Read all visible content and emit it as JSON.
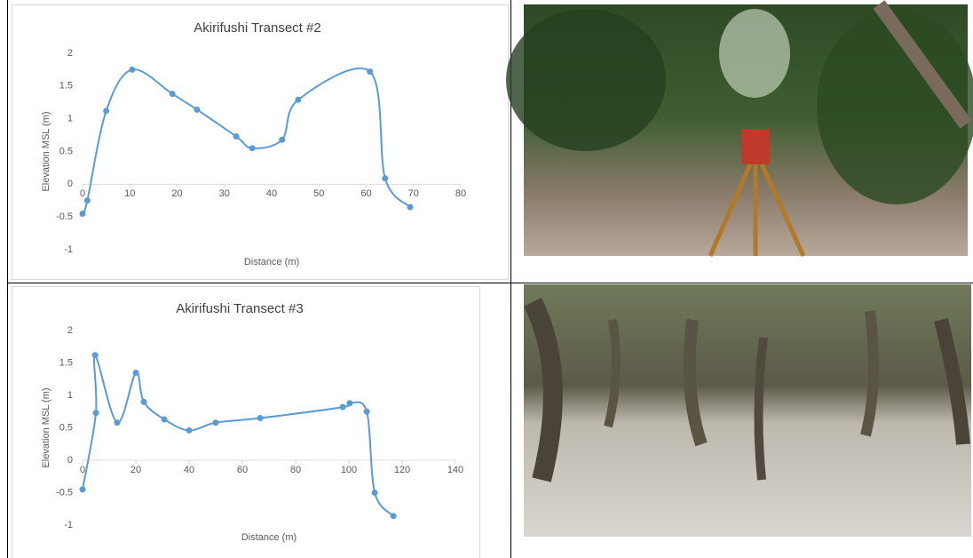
{
  "chart_data": [
    {
      "type": "line",
      "title": "Akirifushi Transect #2",
      "xlabel": "Distance (m)",
      "ylabel": "Elevation MSL (m)",
      "x": [
        0,
        1,
        5,
        10.5,
        19,
        24.2,
        32.5,
        35.9,
        42.2,
        45.6,
        60.8,
        64,
        69.3
      ],
      "values": [
        -0.45,
        -0.25,
        1.12,
        1.75,
        1.38,
        1.14,
        0.73,
        0.55,
        0.68,
        1.29,
        1.72,
        0.09,
        -0.35
      ],
      "color": "#5b9bd5",
      "xlim": [
        0,
        80
      ],
      "xticks": [
        0,
        10,
        20,
        30,
        40,
        50,
        60,
        70,
        80
      ],
      "ylim": [
        -1,
        2
      ],
      "yticks": [
        -1,
        -0.5,
        0,
        0.5,
        1,
        1.5,
        2
      ]
    },
    {
      "type": "line",
      "title": "Akirifushi Transect #3",
      "xlabel": "Distance (m)",
      "ylabel": "Elevation MSL (m)",
      "x": [
        0,
        5,
        4.7,
        13,
        20,
        23,
        30.7,
        40,
        50,
        66.7,
        97.7,
        100.3,
        106.7,
        109.7,
        116.7
      ],
      "values": [
        -0.45,
        0.73,
        1.62,
        0.58,
        1.35,
        0.9,
        0.63,
        0.46,
        0.58,
        0.65,
        0.82,
        0.88,
        0.75,
        -0.5,
        -0.86
      ],
      "color": "#5b9bd5",
      "xlim": [
        0,
        140
      ],
      "xticks": [
        0,
        20,
        40,
        60,
        80,
        100,
        120,
        140
      ],
      "ylim": [
        -1,
        2
      ],
      "yticks": [
        -1,
        -0.5,
        0,
        0.5,
        1,
        1.5,
        2
      ]
    }
  ]
}
